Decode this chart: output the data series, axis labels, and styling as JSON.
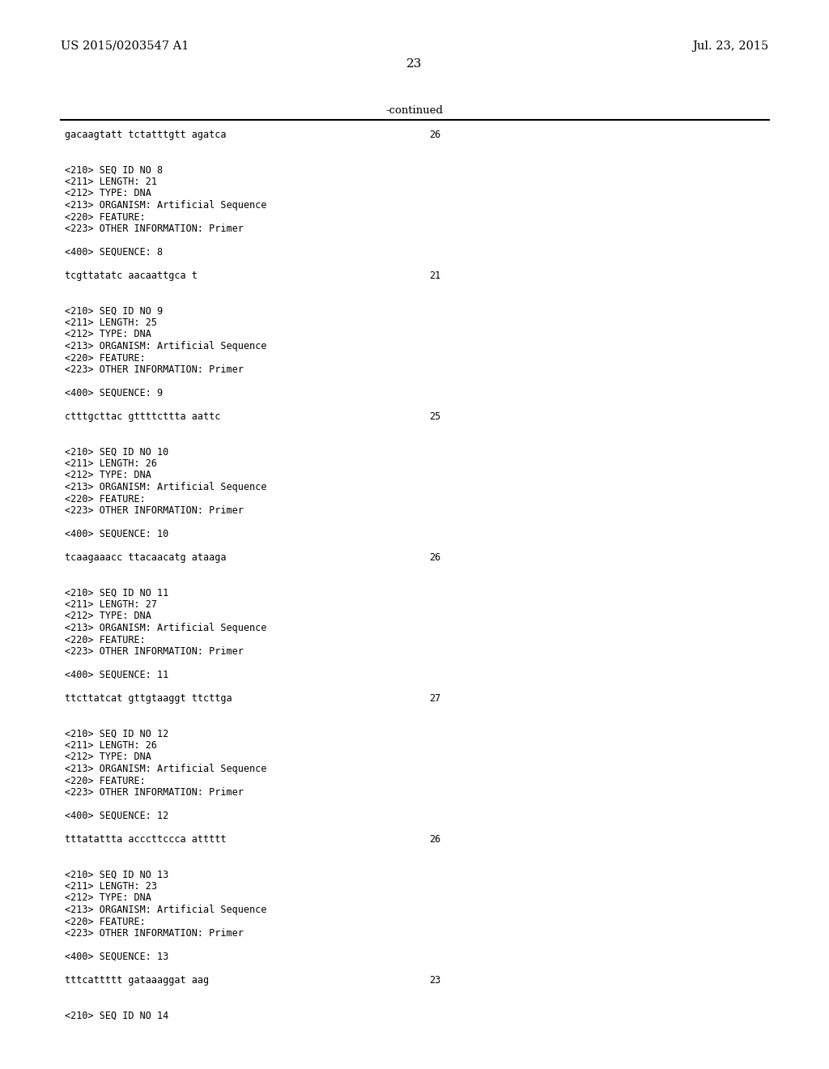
{
  "patent_number": "US 2015/0203547 A1",
  "date": "Jul. 23, 2015",
  "page_number": "23",
  "continued_label": "-continued",
  "background_color": "#ffffff",
  "text_color": "#000000",
  "lines": [
    {
      "text": "gacaagtatt tctatttgtt agatca",
      "tab": 0,
      "right_num": "26",
      "mono": true
    },
    {
      "text": "",
      "tab": 0,
      "right_num": "",
      "mono": false
    },
    {
      "text": "",
      "tab": 0,
      "right_num": "",
      "mono": false
    },
    {
      "text": "<210> SEQ ID NO 8",
      "tab": 0,
      "right_num": "",
      "mono": true
    },
    {
      "text": "<211> LENGTH: 21",
      "tab": 0,
      "right_num": "",
      "mono": true
    },
    {
      "text": "<212> TYPE: DNA",
      "tab": 0,
      "right_num": "",
      "mono": true
    },
    {
      "text": "<213> ORGANISM: Artificial Sequence",
      "tab": 0,
      "right_num": "",
      "mono": true
    },
    {
      "text": "<220> FEATURE:",
      "tab": 0,
      "right_num": "",
      "mono": true
    },
    {
      "text": "<223> OTHER INFORMATION: Primer",
      "tab": 0,
      "right_num": "",
      "mono": true
    },
    {
      "text": "",
      "tab": 0,
      "right_num": "",
      "mono": false
    },
    {
      "text": "<400> SEQUENCE: 8",
      "tab": 0,
      "right_num": "",
      "mono": true
    },
    {
      "text": "",
      "tab": 0,
      "right_num": "",
      "mono": false
    },
    {
      "text": "tcgttatatc aacaattgca t",
      "tab": 0,
      "right_num": "21",
      "mono": true
    },
    {
      "text": "",
      "tab": 0,
      "right_num": "",
      "mono": false
    },
    {
      "text": "",
      "tab": 0,
      "right_num": "",
      "mono": false
    },
    {
      "text": "<210> SEQ ID NO 9",
      "tab": 0,
      "right_num": "",
      "mono": true
    },
    {
      "text": "<211> LENGTH: 25",
      "tab": 0,
      "right_num": "",
      "mono": true
    },
    {
      "text": "<212> TYPE: DNA",
      "tab": 0,
      "right_num": "",
      "mono": true
    },
    {
      "text": "<213> ORGANISM: Artificial Sequence",
      "tab": 0,
      "right_num": "",
      "mono": true
    },
    {
      "text": "<220> FEATURE:",
      "tab": 0,
      "right_num": "",
      "mono": true
    },
    {
      "text": "<223> OTHER INFORMATION: Primer",
      "tab": 0,
      "right_num": "",
      "mono": true
    },
    {
      "text": "",
      "tab": 0,
      "right_num": "",
      "mono": false
    },
    {
      "text": "<400> SEQUENCE: 9",
      "tab": 0,
      "right_num": "",
      "mono": true
    },
    {
      "text": "",
      "tab": 0,
      "right_num": "",
      "mono": false
    },
    {
      "text": "ctttgcttac gttttcttta aattc",
      "tab": 0,
      "right_num": "25",
      "mono": true
    },
    {
      "text": "",
      "tab": 0,
      "right_num": "",
      "mono": false
    },
    {
      "text": "",
      "tab": 0,
      "right_num": "",
      "mono": false
    },
    {
      "text": "<210> SEQ ID NO 10",
      "tab": 0,
      "right_num": "",
      "mono": true
    },
    {
      "text": "<211> LENGTH: 26",
      "tab": 0,
      "right_num": "",
      "mono": true
    },
    {
      "text": "<212> TYPE: DNA",
      "tab": 0,
      "right_num": "",
      "mono": true
    },
    {
      "text": "<213> ORGANISM: Artificial Sequence",
      "tab": 0,
      "right_num": "",
      "mono": true
    },
    {
      "text": "<220> FEATURE:",
      "tab": 0,
      "right_num": "",
      "mono": true
    },
    {
      "text": "<223> OTHER INFORMATION: Primer",
      "tab": 0,
      "right_num": "",
      "mono": true
    },
    {
      "text": "",
      "tab": 0,
      "right_num": "",
      "mono": false
    },
    {
      "text": "<400> SEQUENCE: 10",
      "tab": 0,
      "right_num": "",
      "mono": true
    },
    {
      "text": "",
      "tab": 0,
      "right_num": "",
      "mono": false
    },
    {
      "text": "tcaagaaacc ttacaacatg ataaga",
      "tab": 0,
      "right_num": "26",
      "mono": true
    },
    {
      "text": "",
      "tab": 0,
      "right_num": "",
      "mono": false
    },
    {
      "text": "",
      "tab": 0,
      "right_num": "",
      "mono": false
    },
    {
      "text": "<210> SEQ ID NO 11",
      "tab": 0,
      "right_num": "",
      "mono": true
    },
    {
      "text": "<211> LENGTH: 27",
      "tab": 0,
      "right_num": "",
      "mono": true
    },
    {
      "text": "<212> TYPE: DNA",
      "tab": 0,
      "right_num": "",
      "mono": true
    },
    {
      "text": "<213> ORGANISM: Artificial Sequence",
      "tab": 0,
      "right_num": "",
      "mono": true
    },
    {
      "text": "<220> FEATURE:",
      "tab": 0,
      "right_num": "",
      "mono": true
    },
    {
      "text": "<223> OTHER INFORMATION: Primer",
      "tab": 0,
      "right_num": "",
      "mono": true
    },
    {
      "text": "",
      "tab": 0,
      "right_num": "",
      "mono": false
    },
    {
      "text": "<400> SEQUENCE: 11",
      "tab": 0,
      "right_num": "",
      "mono": true
    },
    {
      "text": "",
      "tab": 0,
      "right_num": "",
      "mono": false
    },
    {
      "text": "ttcttatcat gttgtaaggt ttcttga",
      "tab": 0,
      "right_num": "27",
      "mono": true
    },
    {
      "text": "",
      "tab": 0,
      "right_num": "",
      "mono": false
    },
    {
      "text": "",
      "tab": 0,
      "right_num": "",
      "mono": false
    },
    {
      "text": "<210> SEQ ID NO 12",
      "tab": 0,
      "right_num": "",
      "mono": true
    },
    {
      "text": "<211> LENGTH: 26",
      "tab": 0,
      "right_num": "",
      "mono": true
    },
    {
      "text": "<212> TYPE: DNA",
      "tab": 0,
      "right_num": "",
      "mono": true
    },
    {
      "text": "<213> ORGANISM: Artificial Sequence",
      "tab": 0,
      "right_num": "",
      "mono": true
    },
    {
      "text": "<220> FEATURE:",
      "tab": 0,
      "right_num": "",
      "mono": true
    },
    {
      "text": "<223> OTHER INFORMATION: Primer",
      "tab": 0,
      "right_num": "",
      "mono": true
    },
    {
      "text": "",
      "tab": 0,
      "right_num": "",
      "mono": false
    },
    {
      "text": "<400> SEQUENCE: 12",
      "tab": 0,
      "right_num": "",
      "mono": true
    },
    {
      "text": "",
      "tab": 0,
      "right_num": "",
      "mono": false
    },
    {
      "text": "tttatattta acccttccca attttt",
      "tab": 0,
      "right_num": "26",
      "mono": true
    },
    {
      "text": "",
      "tab": 0,
      "right_num": "",
      "mono": false
    },
    {
      "text": "",
      "tab": 0,
      "right_num": "",
      "mono": false
    },
    {
      "text": "<210> SEQ ID NO 13",
      "tab": 0,
      "right_num": "",
      "mono": true
    },
    {
      "text": "<211> LENGTH: 23",
      "tab": 0,
      "right_num": "",
      "mono": true
    },
    {
      "text": "<212> TYPE: DNA",
      "tab": 0,
      "right_num": "",
      "mono": true
    },
    {
      "text": "<213> ORGANISM: Artificial Sequence",
      "tab": 0,
      "right_num": "",
      "mono": true
    },
    {
      "text": "<220> FEATURE:",
      "tab": 0,
      "right_num": "",
      "mono": true
    },
    {
      "text": "<223> OTHER INFORMATION: Primer",
      "tab": 0,
      "right_num": "",
      "mono": true
    },
    {
      "text": "",
      "tab": 0,
      "right_num": "",
      "mono": false
    },
    {
      "text": "<400> SEQUENCE: 13",
      "tab": 0,
      "right_num": "",
      "mono": true
    },
    {
      "text": "",
      "tab": 0,
      "right_num": "",
      "mono": false
    },
    {
      "text": "tttcattttt gataaaggat aag",
      "tab": 0,
      "right_num": "23",
      "mono": true
    },
    {
      "text": "",
      "tab": 0,
      "right_num": "",
      "mono": false
    },
    {
      "text": "",
      "tab": 0,
      "right_num": "",
      "mono": false
    },
    {
      "text": "<210> SEQ ID NO 14",
      "tab": 0,
      "right_num": "",
      "mono": true
    }
  ]
}
